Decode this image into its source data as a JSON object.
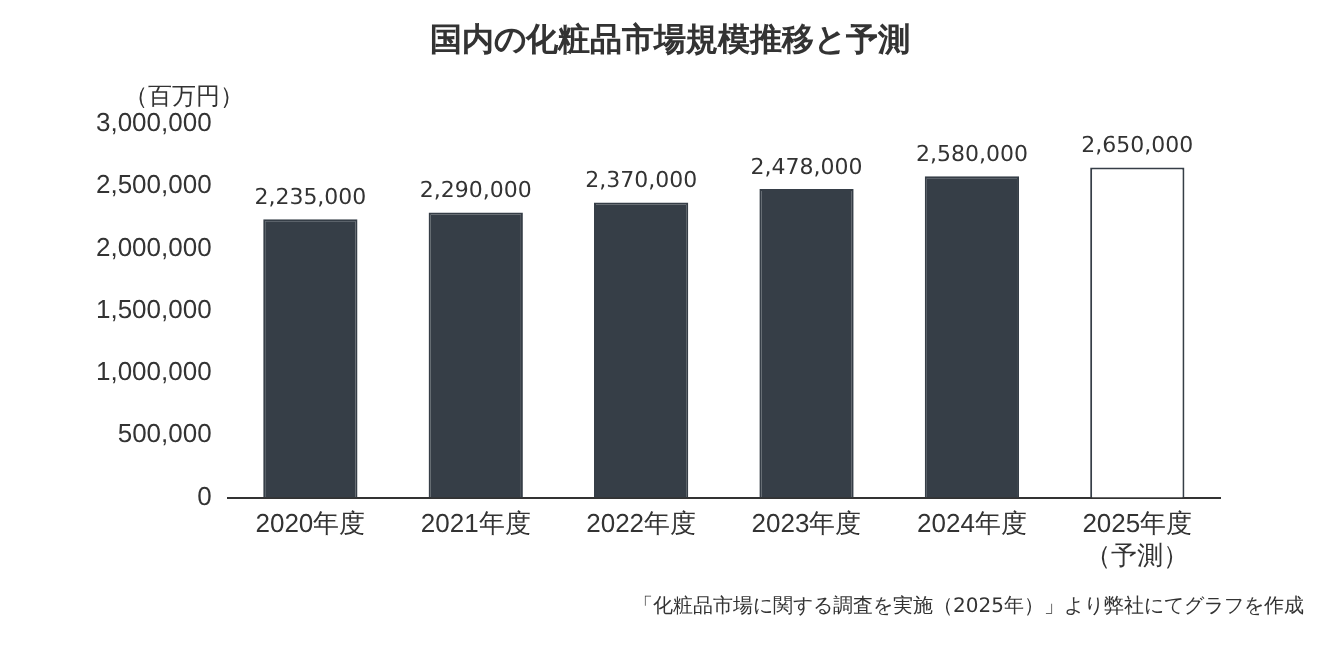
{
  "chart_data": {
    "type": "bar",
    "title": "国内の化粧品市場規模推移と予測",
    "ylabel": "（百万円）",
    "categories": [
      "2020年度",
      "2021年度",
      "2022年度",
      "2023年度",
      "2024年度",
      "2025年度（予測）"
    ],
    "value_labels": [
      "2,235,000",
      "2,290,000",
      "2,370,000",
      "2,478,000",
      "2,580,000",
      "2,650,000"
    ],
    "values": [
      2235000,
      2290000,
      2370000,
      2478000,
      2580000,
      2650000
    ],
    "color": "#363e47",
    "colors": [
      "#363e47",
      "#363e47",
      "#363e47",
      "#363e47",
      "#363e47",
      "#ffffff"
    ],
    "ylim": [
      0,
      3000000
    ],
    "yticks": [
      0,
      {
        "value": 500000,
        "label": "500,000"
      },
      {
        "value": 1000000,
        "label": "1,000,000"
      },
      {
        "value": 1500000,
        "label": "1,500,000"
      },
      {
        "value": 2000000,
        "label": "2,000,000"
      },
      {
        "value": 2500000,
        "label": "2,500,000"
      },
      {
        "value": 3000000,
        "label": "3,000,000"
      }
    ],
    "grid": false,
    "legend": false,
    "annotations": [
      "「化粧品市場に関する調査を実施（2025年）」より弊社にてグラフを作成"
    ]
  }
}
